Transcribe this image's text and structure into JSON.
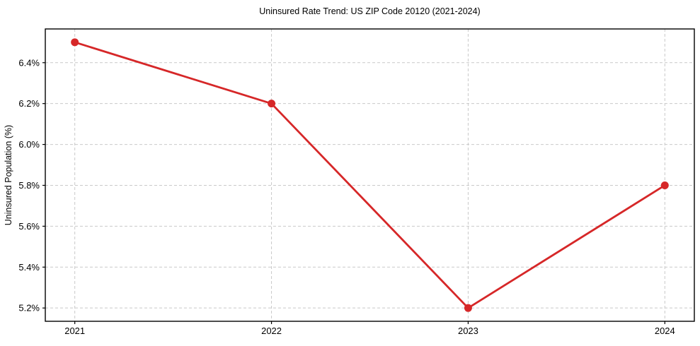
{
  "figure": {
    "background": "#ffffff"
  },
  "chart_data": {
    "type": "line",
    "title": "Uninsured Rate Trend: US ZIP Code 20120 (2021-2024)",
    "xlabel": "",
    "ylabel": "Uninsured Population (%)",
    "x": [
      2021,
      2022,
      2023,
      2024
    ],
    "x_tick_labels": [
      "2021",
      "2022",
      "2023",
      "2024"
    ],
    "values": [
      6.5,
      6.2,
      5.2,
      5.8
    ],
    "y_ticks": [
      5.2,
      5.4,
      5.6,
      5.8,
      6.0,
      6.2,
      6.4
    ],
    "y_tick_labels": [
      "5.2%",
      "5.4%",
      "5.6%",
      "5.8%",
      "6.0%",
      "6.2%",
      "6.4%"
    ],
    "xlim": [
      2020.85,
      2024.15
    ],
    "ylim": [
      5.135,
      6.565
    ],
    "grid": true,
    "grid_style": "dashed",
    "legend_position": "none",
    "colors": {
      "line": "#d62728",
      "marker": "#d62728",
      "grid": "#c9c9c9",
      "axis": "#000000",
      "text": "#000000"
    }
  }
}
